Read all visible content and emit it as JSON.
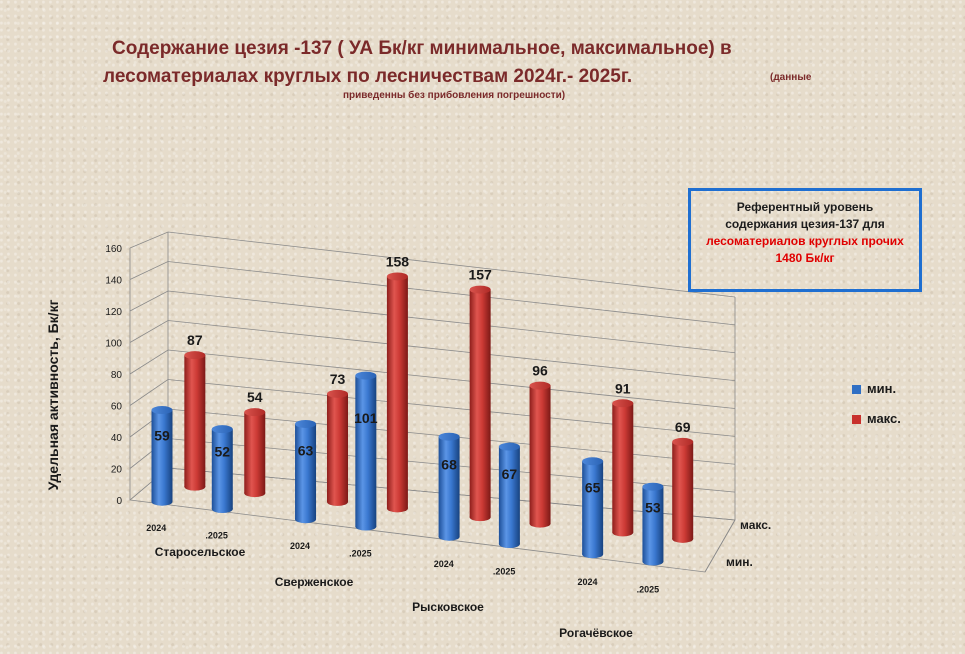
{
  "title": {
    "line1": "Содержание цезия -137 ( УА Бк/кг минимальное, максимальное) в",
    "line2": "лесоматериалах круглых по лесничествам  2024г.- 2025г.",
    "note_part1": "(данные",
    "note_part2": "приведенны без прибовления погрешности)"
  },
  "reference_box": {
    "line1": "Референтный уровень",
    "line2": "содержания  цезия-137 для",
    "line3": "лесоматериалов  круглых прочих",
    "line4": "1480 Бк/кг"
  },
  "legend": {
    "min_label": "мин.",
    "max_label": "макс."
  },
  "colors": {
    "min": "#2f6fc4",
    "max": "#c8302c",
    "grid": "#8a8a8a",
    "text": "#1a1a1a"
  },
  "chart_data": {
    "type": "bar",
    "subtype": "3d-cylinder",
    "ylabel": "Удельная активность,  Бк/кг",
    "ylim": [
      0,
      160
    ],
    "yticks": [
      0,
      20,
      40,
      60,
      80,
      100,
      120,
      140,
      160
    ],
    "depth_labels": [
      "макс.",
      "мин."
    ],
    "groups": [
      {
        "name": "Старосельское",
        "categories": [
          "2024",
          ".2025"
        ]
      },
      {
        "name": "Сверженское",
        "categories": [
          "2024",
          ".2025"
        ]
      },
      {
        "name": "Рысковское",
        "categories": [
          "2024",
          ".2025"
        ]
      },
      {
        "name": "Рогачёвское",
        "categories": [
          "2024",
          ".2025"
        ]
      }
    ],
    "series": [
      {
        "name": "мин.",
        "values": [
          59,
          52,
          63,
          101,
          68,
          67,
          65,
          53
        ]
      },
      {
        "name": "макс.",
        "values": [
          87,
          54,
          73,
          158,
          157,
          96,
          91,
          69
        ]
      }
    ],
    "legend_position": "right"
  }
}
